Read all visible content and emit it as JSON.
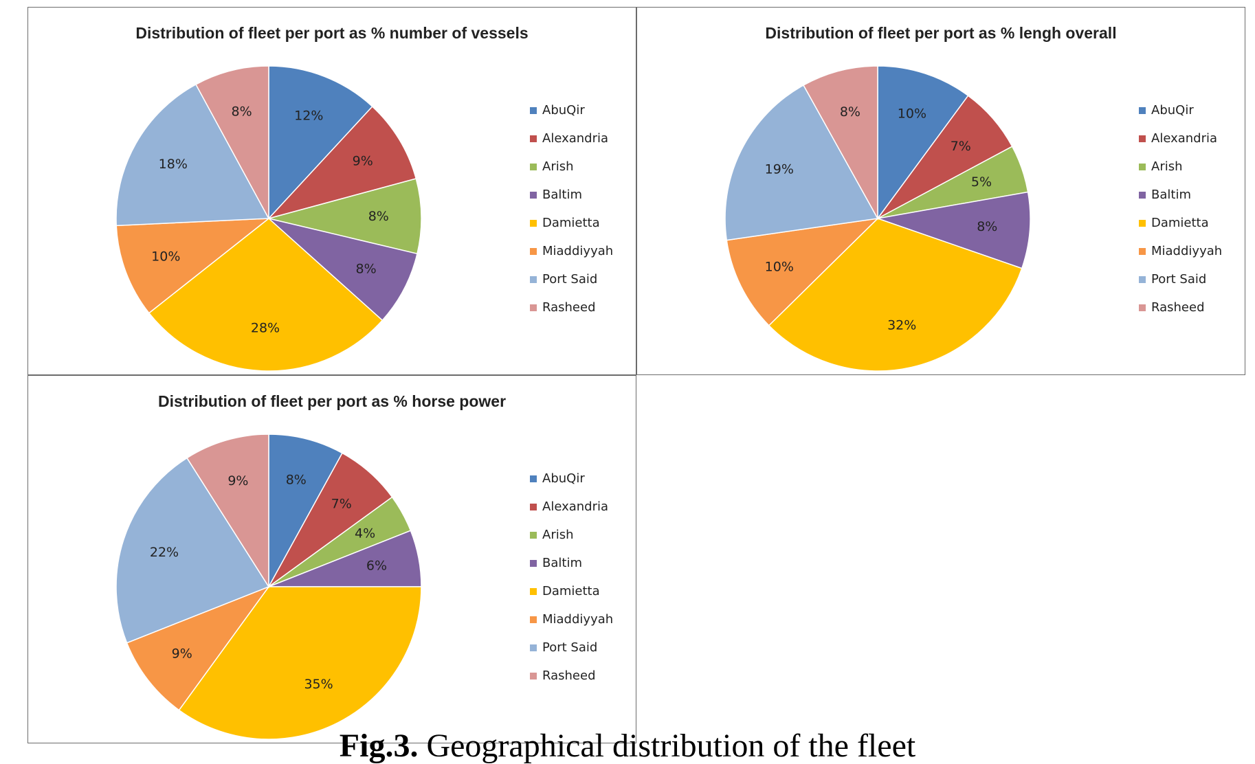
{
  "colors": {
    "Abu Qir": "#4f81bd",
    "Alexandria": "#c0504d",
    "Arish": "#9bbb59",
    "Baltim": "#8064a2",
    "Damietta": "#ffc000",
    "Miaddiyyah": "#f79646",
    "Port Said": "#95b3d7",
    "Rasheed": "#d99694"
  },
  "chart_data": [
    {
      "type": "pie",
      "title": "Distribution of fleet per port as % number of vessels",
      "categories": [
        "Abu Qir",
        "Alexandria",
        "Arish",
        "Baltim",
        "Damietta",
        "Miaddiyyah",
        "Port Said",
        "Rasheed"
      ],
      "legend_labels": [
        "AbuQir",
        "Alexandria",
        "Arish",
        "Baltim",
        "Damietta",
        "Miaddiyyah",
        "Port Said",
        "Rasheed"
      ],
      "values": [
        12,
        9,
        8,
        8,
        28,
        10,
        18,
        8
      ],
      "data_labels": [
        "12%",
        "9%",
        "8%",
        "8%",
        "28%",
        "10%",
        "18%",
        "8%"
      ],
      "legend_position": "right"
    },
    {
      "type": "pie",
      "title": "Distribution of fleet per port as % lengh overall",
      "categories": [
        "Abu Qir",
        "Alexandria",
        "Arish",
        "Baltim",
        "Damietta",
        "Miaddiyyah",
        "Port Said",
        "Rasheed"
      ],
      "legend_labels": [
        "AbuQir",
        "Alexandria",
        "Arish",
        "Baltim",
        "Damietta",
        "Miaddiyyah",
        "Port Said",
        "Rasheed"
      ],
      "values": [
        10,
        7,
        5,
        8,
        32,
        10,
        19,
        8
      ],
      "data_labels": [
        "10%",
        "7%",
        "5%",
        "8%",
        "32%",
        "10%",
        "19%",
        "8%"
      ],
      "legend_position": "right"
    },
    {
      "type": "pie",
      "title": "Distribution of fleet per port as % horse power",
      "categories": [
        "Abu Qir",
        "Alexandria",
        "Arish",
        "Baltim",
        "Damietta",
        "Miaddiyyah",
        "Port Said",
        "Rasheed"
      ],
      "legend_labels": [
        "AbuQir",
        "Alexandria",
        "Arish",
        "Baltim",
        "Damietta",
        "Miaddiyyah",
        "Port Said",
        "Rasheed"
      ],
      "values": [
        8,
        7,
        4,
        6,
        35,
        9,
        22,
        9
      ],
      "data_labels": [
        "8%",
        "7%",
        "4%",
        "6%",
        "35%",
        "9%",
        "22%",
        "9%"
      ],
      "legend_position": "right"
    }
  ],
  "caption": {
    "label": "Fig.3.",
    "text": "Geographical distribution of the fleet"
  }
}
